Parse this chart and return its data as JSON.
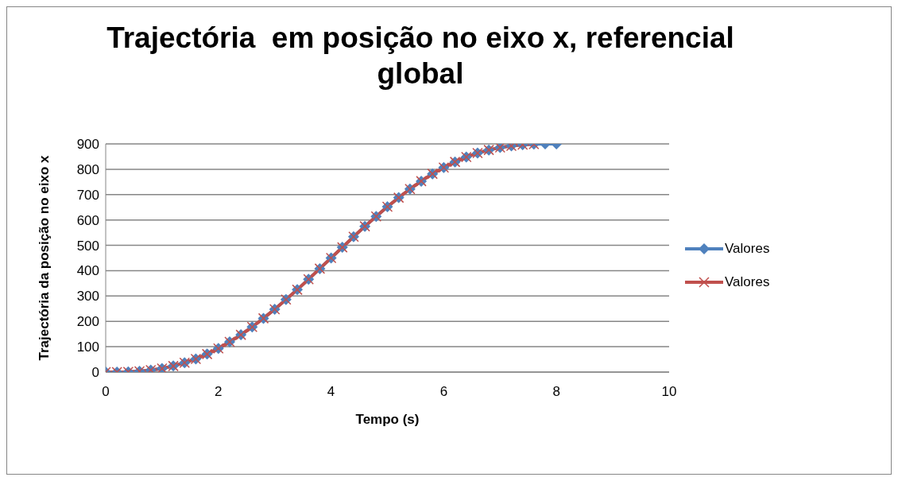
{
  "chart_data": {
    "type": "line",
    "title": "Trajectória  em posição no eixo x, referencial global",
    "xlabel": "Tempo (s)",
    "ylabel": "Trajectória da posição no eixo x",
    "xlim": [
      0,
      10
    ],
    "xticks": [
      0,
      2,
      4,
      6,
      8,
      10
    ],
    "ylim": [
      0,
      900
    ],
    "yticks": [
      0,
      100,
      200,
      300,
      400,
      500,
      600,
      700,
      800,
      900
    ],
    "grid": "y",
    "legend": "right",
    "line_style": "solid",
    "series": [
      {
        "name": "Valores",
        "color": "#4f81bd",
        "marker": "diamond",
        "x": [
          0,
          0.2,
          0.4,
          0.6,
          0.8,
          1,
          1.2,
          1.4,
          1.6,
          1.8,
          2,
          2.2,
          2.4,
          2.6,
          2.8,
          3,
          3.2,
          3.4,
          3.6,
          3.8,
          4,
          4.2,
          4.4,
          4.6,
          4.8,
          5,
          5.2,
          5.4,
          5.6,
          5.8,
          6,
          6.2,
          6.4,
          6.6,
          6.8,
          7,
          7.2,
          7.4,
          7.6,
          7.8,
          8
        ],
        "values": [
          0,
          0,
          1,
          3,
          8,
          14,
          24,
          37,
          52,
          71,
          93,
          119,
          147,
          178,
          212,
          248,
          286,
          325,
          366,
          408,
          450,
          492,
          534,
          575,
          614,
          652,
          688,
          722,
          753,
          782,
          807,
          829,
          848,
          864,
          876,
          886,
          892,
          897,
          899,
          900,
          900
        ]
      },
      {
        "name": "Valores",
        "color": "#c0504d",
        "marker": "cross",
        "x": [
          0,
          0.2,
          0.4,
          0.6,
          0.8,
          1,
          1.2,
          1.4,
          1.6,
          1.8,
          2,
          2.2,
          2.4,
          2.6,
          2.8,
          3,
          3.2,
          3.4,
          3.6,
          3.8,
          4,
          4.2,
          4.4,
          4.6,
          4.8,
          5,
          5.2,
          5.4,
          5.6,
          5.8,
          6,
          6.2,
          6.4,
          6.6,
          6.8,
          7,
          7.2,
          7.4,
          7.6
        ],
        "values": [
          0,
          0,
          1,
          3,
          8,
          14,
          24,
          37,
          52,
          71,
          93,
          119,
          147,
          178,
          212,
          248,
          286,
          325,
          366,
          408,
          450,
          492,
          534,
          575,
          614,
          652,
          688,
          722,
          753,
          782,
          807,
          829,
          848,
          864,
          876,
          886,
          892,
          897,
          899
        ]
      }
    ]
  }
}
